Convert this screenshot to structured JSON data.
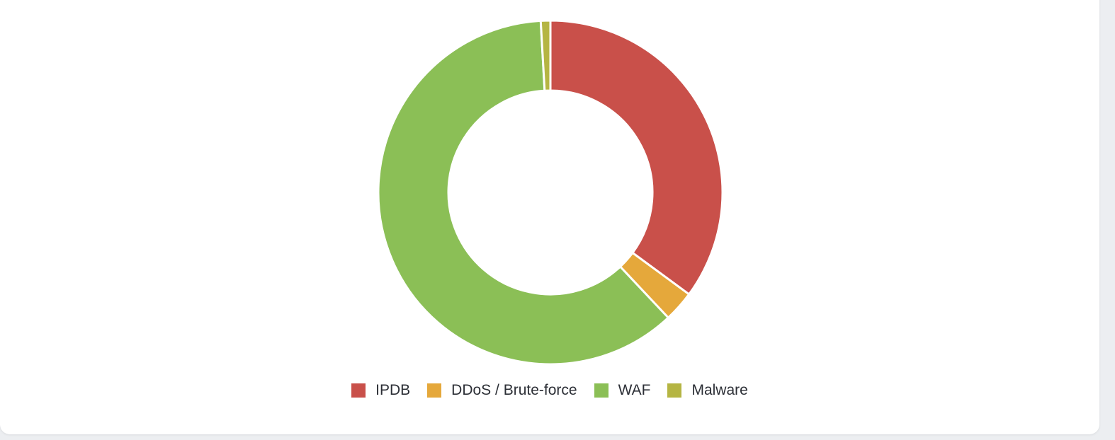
{
  "chart_data": {
    "type": "donut",
    "categories": [
      "IPDB",
      "DDoS / Brute-force",
      "WAF",
      "Malware"
    ],
    "values": [
      35.1,
      2.9,
      61.1,
      0.9
    ],
    "colors": [
      "#c9504a",
      "#e5a83b",
      "#8bbf56",
      "#b5b543"
    ],
    "legend": "bottom"
  }
}
